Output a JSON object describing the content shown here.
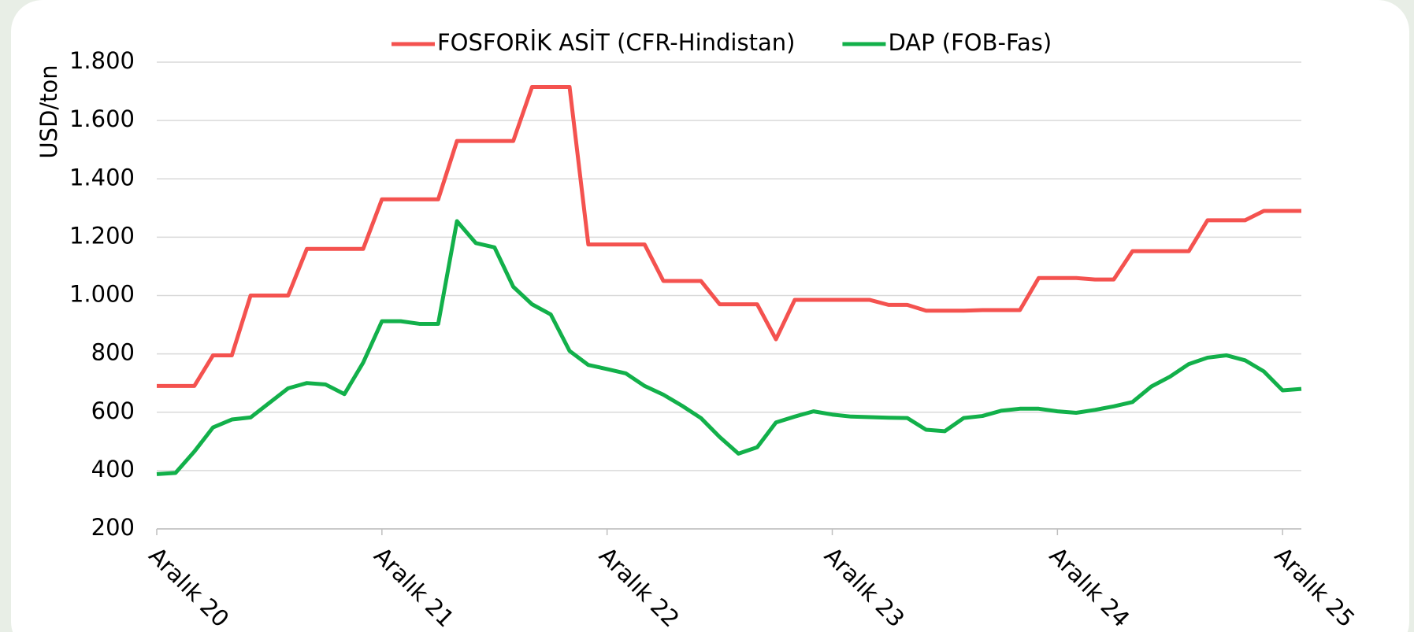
{
  "chart_data": {
    "type": "line",
    "y_label": "USD/ton",
    "categories": [
      "Aralık 20",
      null,
      null,
      null,
      null,
      null,
      null,
      null,
      null,
      null,
      null,
      null,
      "Aralık 21",
      null,
      null,
      null,
      null,
      null,
      null,
      null,
      null,
      null,
      null,
      null,
      "Aralık 22",
      null,
      null,
      null,
      null,
      null,
      null,
      null,
      null,
      null,
      null,
      null,
      "Aralık 23",
      null,
      null,
      null,
      null,
      null,
      null,
      null,
      null,
      null,
      null,
      null,
      "Aralık 24",
      null,
      null,
      null,
      null,
      null,
      null,
      null,
      null,
      null,
      null,
      null,
      "Aralık 25",
      null
    ],
    "series": [
      {
        "name": "FOSFORİK ASİT (CFR-Hindistan)",
        "color": "#f4524f",
        "values": [
          690,
          690,
          690,
          795,
          795,
          1000,
          1000,
          1000,
          1160,
          1160,
          1160,
          1160,
          1330,
          1330,
          1330,
          1330,
          1530,
          1530,
          1530,
          1530,
          1715,
          1715,
          1715,
          1175,
          1175,
          1175,
          1175,
          1050,
          1050,
          1050,
          970,
          970,
          970,
          850,
          985,
          985,
          985,
          985,
          985,
          968,
          968,
          948,
          948,
          948,
          950,
          950,
          950,
          1060,
          1060,
          1060,
          1055,
          1055,
          1152,
          1152,
          1152,
          1152,
          1258,
          1258,
          1258,
          1290,
          1290,
          1290
        ]
      },
      {
        "name": "DAP (FOB-Fas)",
        "color": "#12b04a",
        "values": [
          388,
          392,
          465,
          548,
          575,
          582,
          632,
          682,
          700,
          695,
          662,
          770,
          912,
          912,
          903,
          903,
          1255,
          1180,
          1165,
          1030,
          970,
          935,
          810,
          762,
          748,
          733,
          690,
          660,
          622,
          580,
          515,
          458,
          480,
          565,
          585,
          603,
          592,
          585,
          583,
          581,
          580,
          540,
          535,
          580,
          587,
          605,
          612,
          612,
          603,
          598,
          608,
          620,
          635,
          688,
          722,
          765,
          787,
          795,
          778,
          740,
          675,
          680
        ]
      }
    ],
    "ylim": [
      200,
      1800
    ],
    "yticks": [
      200,
      400,
      600,
      800,
      {
        "value": 1000,
        "label": "1.000"
      },
      {
        "value": 1200,
        "label": "1.200"
      },
      {
        "value": 1400,
        "label": "1.400"
      },
      {
        "value": 1600,
        "label": "1.600"
      },
      {
        "value": 1800,
        "label": "1.800"
      }
    ],
    "grid": true,
    "legend": "top"
  }
}
